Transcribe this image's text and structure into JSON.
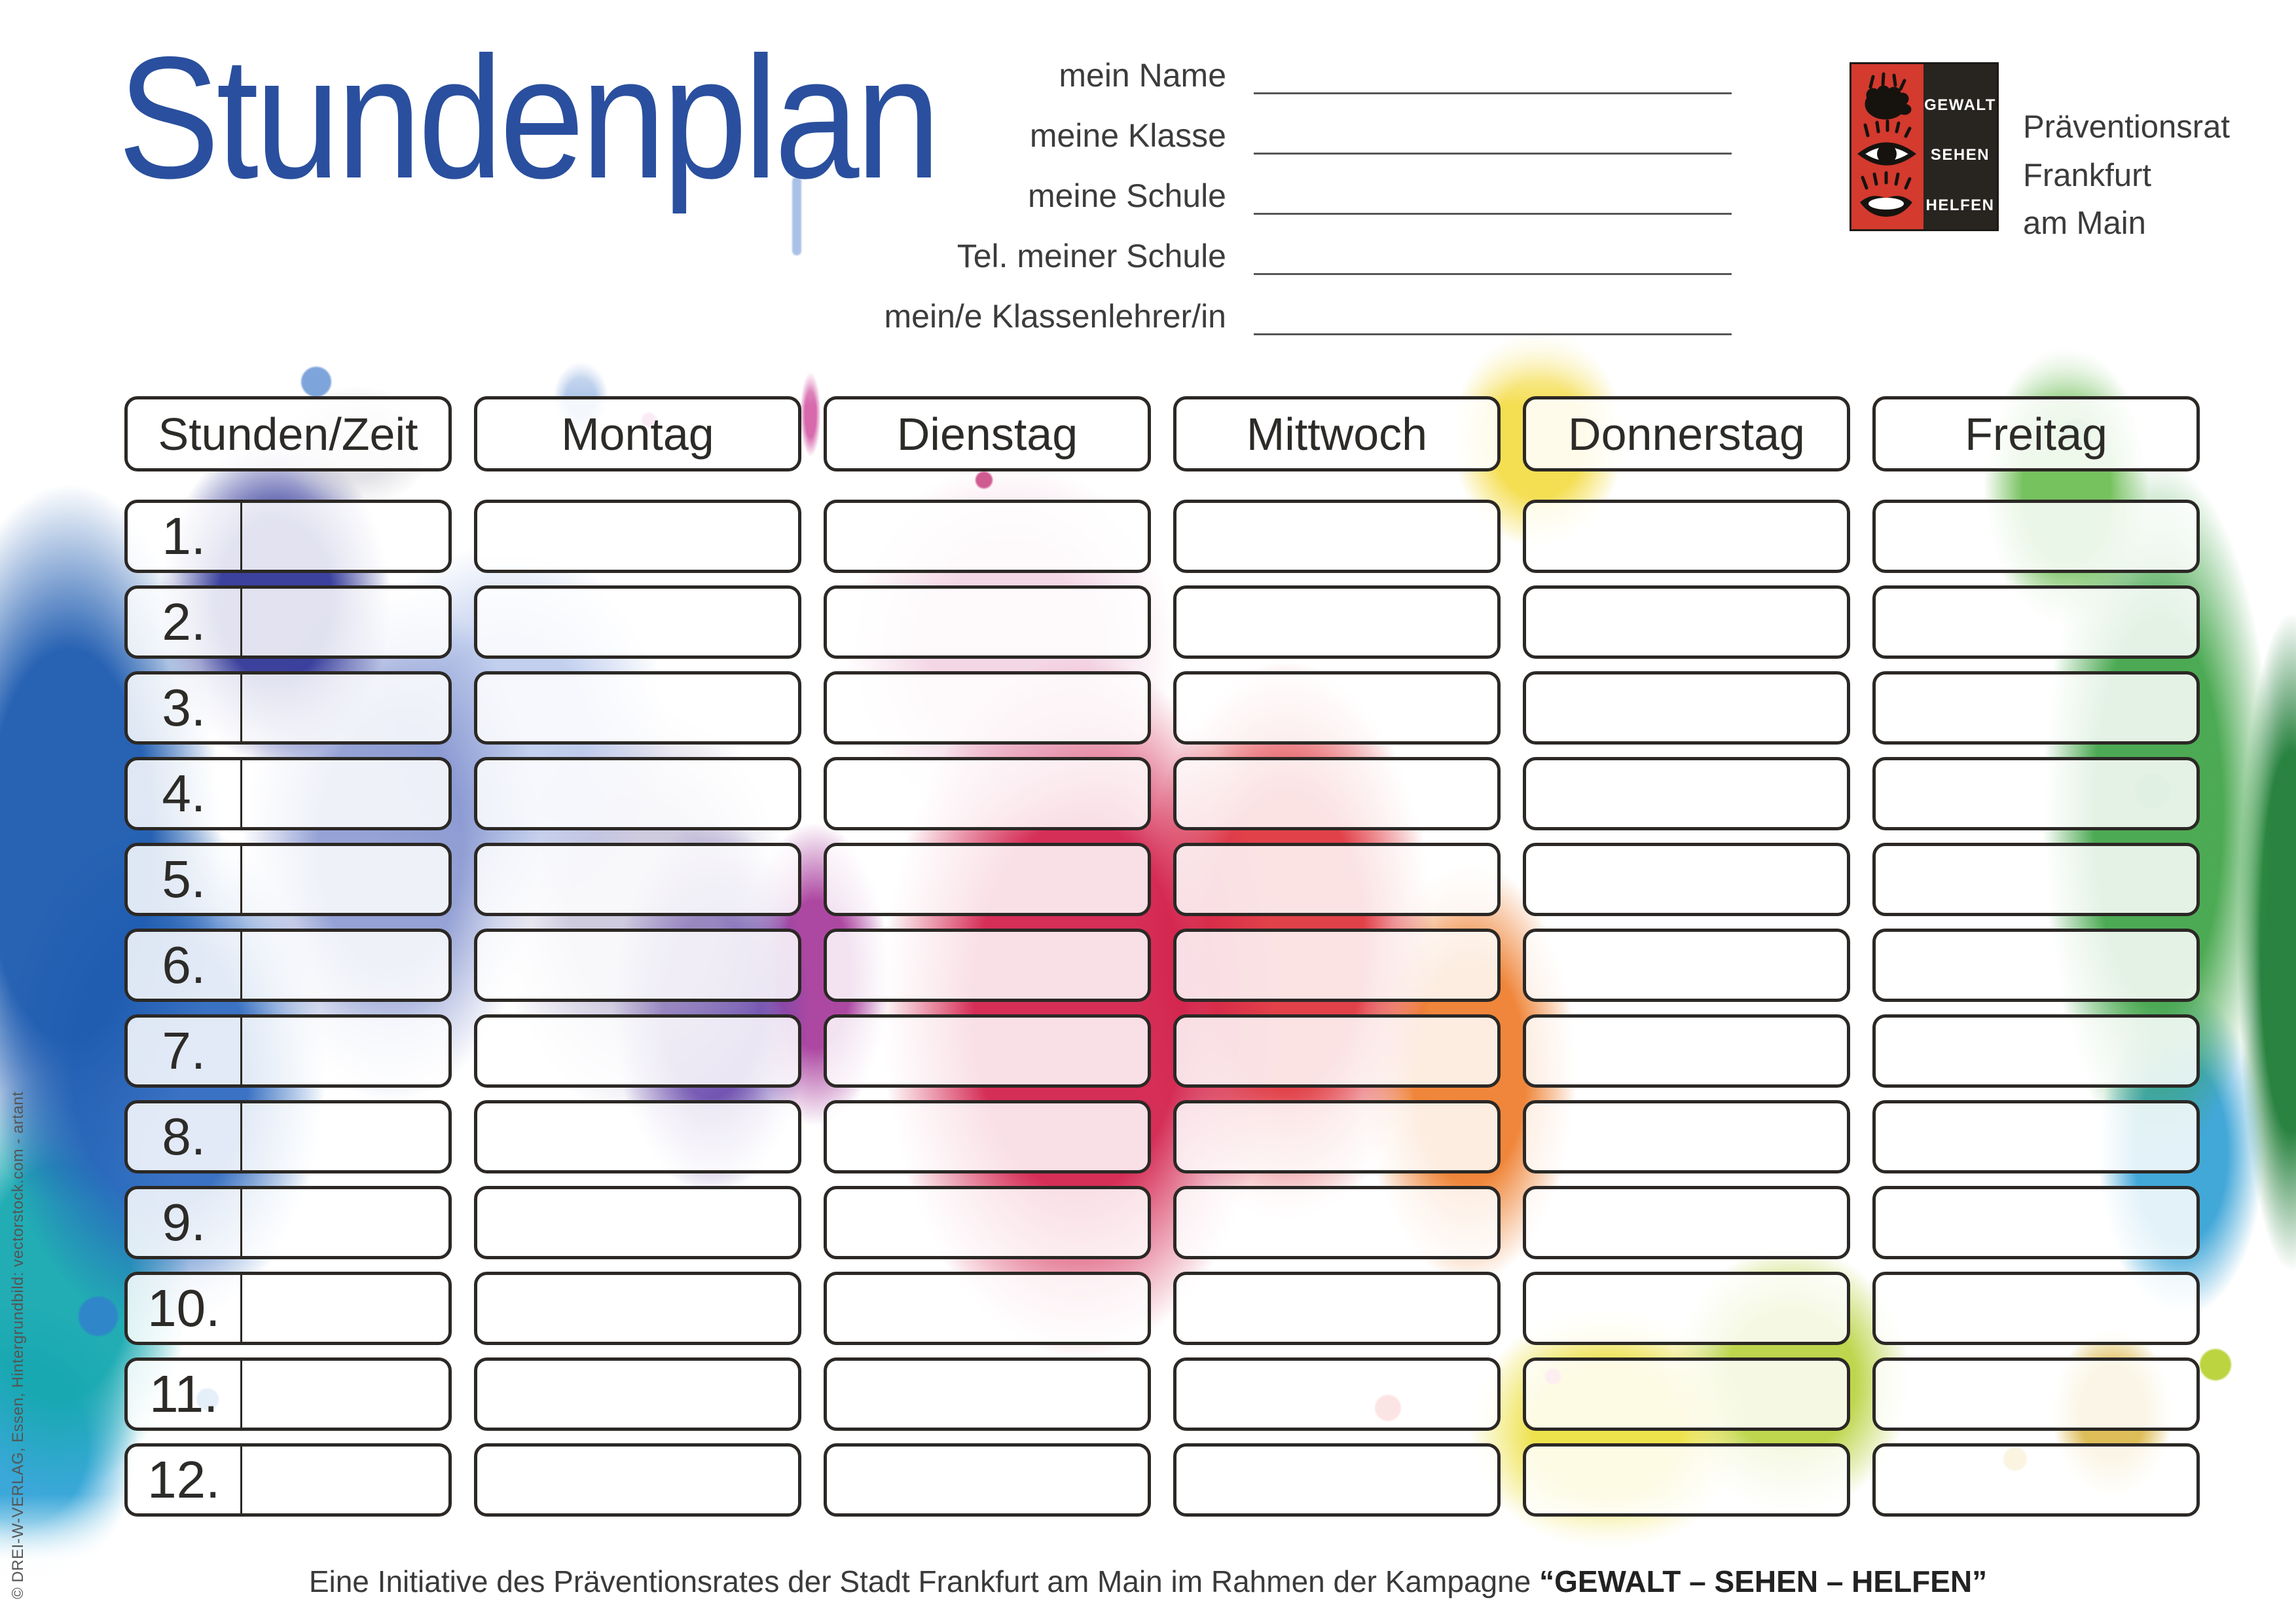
{
  "title": "Stundenplan",
  "form": {
    "fields": [
      {
        "label": "mein Name"
      },
      {
        "label": "meine Klasse"
      },
      {
        "label": "meine Schule"
      },
      {
        "label": "Tel. meiner Schule"
      },
      {
        "label": "mein/e Klassenlehrer/in"
      }
    ]
  },
  "logo": {
    "words": [
      "GEWALT",
      "SEHEN",
      "HELFEN"
    ],
    "org_lines": [
      "Präventionsrat",
      "Frankfurt",
      "am Main"
    ],
    "red": "#d43a2e",
    "black": "#282420"
  },
  "table": {
    "headers": [
      "Stunden/Zeit",
      "Montag",
      "Dienstag",
      "Mittwoch",
      "Donnerstag",
      "Freitag"
    ],
    "hours": [
      "1.",
      "2.",
      "3.",
      "4.",
      "5.",
      "6.",
      "7.",
      "8.",
      "9.",
      "10.",
      "11.",
      "12."
    ]
  },
  "footer": {
    "text": "Eine Initiative des Präventionsrates der Stadt Frankfurt am Main im Rahmen der Kampagne ",
    "campaign": "“GEWALT – SEHEN – HELFEN”"
  },
  "copyright": "© DREI-W-VERLAG, Essen, Hintergrundbild: vectorstock.com - artant",
  "colors": {
    "title_blue": "#2a4f9e",
    "border_dark": "#2b2825",
    "accent_red": "#d2204a"
  }
}
